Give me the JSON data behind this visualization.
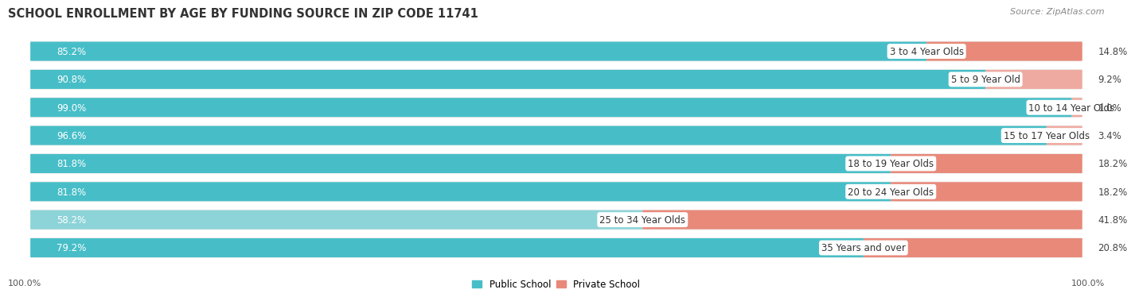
{
  "title": "SCHOOL ENROLLMENT BY AGE BY FUNDING SOURCE IN ZIP CODE 11741",
  "source": "Source: ZipAtlas.com",
  "categories": [
    "3 to 4 Year Olds",
    "5 to 9 Year Old",
    "10 to 14 Year Olds",
    "15 to 17 Year Olds",
    "18 to 19 Year Olds",
    "20 to 24 Year Olds",
    "25 to 34 Year Olds",
    "35 Years and over"
  ],
  "public_values": [
    85.2,
    90.8,
    99.0,
    96.6,
    81.8,
    81.8,
    58.2,
    79.2
  ],
  "private_values": [
    14.8,
    9.2,
    1.0,
    3.4,
    18.2,
    18.2,
    41.8,
    20.8
  ],
  "public_color": "#47bec7",
  "private_color": "#e8897a",
  "private_color_light": "#eeaaa0",
  "public_color_light": "#8dd4d8",
  "row_bg_color": "#ebebeb",
  "label_white": "#ffffff",
  "label_dark": "#444444",
  "title_fontsize": 10.5,
  "source_fontsize": 8,
  "label_fontsize": 8.5,
  "cat_fontsize": 8.5,
  "axis_label_fontsize": 8,
  "background_color": "#ffffff",
  "footer_labels": [
    "100.0%",
    "100.0%"
  ],
  "legend_labels": [
    "Public School",
    "Private School"
  ]
}
